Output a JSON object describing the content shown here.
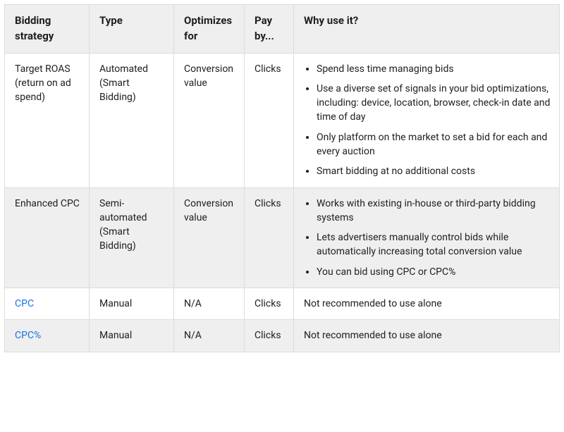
{
  "table": {
    "headers": {
      "strategy": "Bidding strategy",
      "type": "Type",
      "optimizes": "Optimizes for",
      "pay": "Pay by...",
      "why": "Why use it?"
    },
    "rows": [
      {
        "strategy_text": "Target ROAS (return on ad spend)",
        "strategy_is_link": false,
        "type": "Automated (Smart Bidding)",
        "optimizes": "Conversion value",
        "pay": "Clicks",
        "why_plain": null,
        "why_bullets": [
          "Spend less time managing bids",
          "Use a diverse set of signals in your bid optimizations, including: device, location, browser, check-in date and time of day",
          "Only platform on the market to set a bid for each and every auction",
          "Smart bidding at no additional costs"
        ],
        "alt": false
      },
      {
        "strategy_text": "Enhanced CPC",
        "strategy_is_link": false,
        "type": "Semi-automated (Smart Bidding)",
        "optimizes": "Conversion value",
        "pay": "Clicks",
        "why_plain": null,
        "why_bullets": [
          "Works with existing in-house or third-party bidding systems",
          "Lets advertisers manually control bids while automatically increasing total conversion value",
          "You can bid using CPC or CPC%"
        ],
        "alt": true
      },
      {
        "strategy_text": "CPC",
        "strategy_is_link": true,
        "type": "Manual",
        "optimizes": "N/A",
        "pay": "Clicks",
        "why_plain": "Not recommended to use alone",
        "why_bullets": null,
        "alt": false
      },
      {
        "strategy_text": "CPC%",
        "strategy_is_link": true,
        "type": "Manual",
        "optimizes": "N/A",
        "pay": "Clicks",
        "why_plain": "Not recommended to use alone",
        "why_bullets": null,
        "alt": true
      }
    ]
  },
  "styles": {
    "border_color": "#dcdcdc",
    "header_bg": "#efefef",
    "alt_row_bg": "#efefef",
    "text_color": "#202124",
    "link_color": "#1a73e8",
    "font_size_header_pt": 11,
    "font_size_body_pt": 10.5
  }
}
